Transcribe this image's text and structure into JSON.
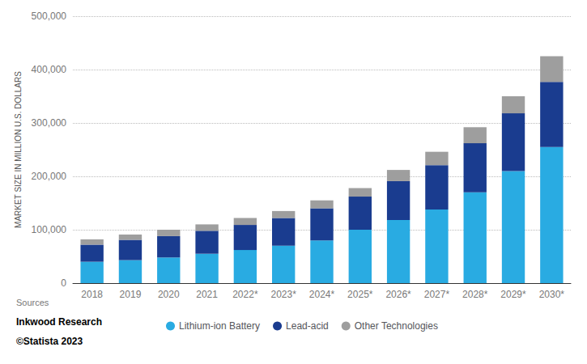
{
  "chart_data": {
    "type": "bar",
    "stacked": true,
    "categories": [
      "2018",
      "2019",
      "2020",
      "2021",
      "2022*",
      "2023*",
      "2024*",
      "2025*",
      "2026*",
      "2027*",
      "2028*",
      "2029*",
      "2030*"
    ],
    "series": [
      {
        "name": "Lithium-ion Battery",
        "color": "#29abe2",
        "values": [
          40000,
          43000,
          48000,
          55000,
          62000,
          70000,
          80000,
          100000,
          118000,
          138000,
          170000,
          210000,
          255000
        ]
      },
      {
        "name": "Lead-acid",
        "color": "#1a3c8f",
        "values": [
          32000,
          38000,
          40000,
          43000,
          47000,
          52000,
          60000,
          62000,
          73000,
          83000,
          92000,
          108000,
          122000
        ]
      },
      {
        "name": "Other Technologies",
        "color": "#9e9e9e",
        "values": [
          10000,
          10000,
          12000,
          12000,
          13000,
          13000,
          15000,
          16000,
          21000,
          25000,
          30000,
          32000,
          48000
        ]
      }
    ],
    "ylabel": "MARKET SIZE IN MILLION U.S. DOLLARS",
    "ylim": [
      0,
      500000
    ],
    "yticks": [
      0,
      {
        "value": 100000,
        "label": "100,000"
      },
      {
        "value": 200000,
        "label": "200,000"
      },
      {
        "value": 300000,
        "label": "300,000"
      },
      {
        "value": 400000,
        "label": "400,000"
      },
      {
        "value": 500000,
        "label": "500,000"
      }
    ],
    "grid": true,
    "legend": "bottom",
    "annotations": [
      "Sources",
      "Inkwood Research",
      "©Statista 2023"
    ]
  }
}
